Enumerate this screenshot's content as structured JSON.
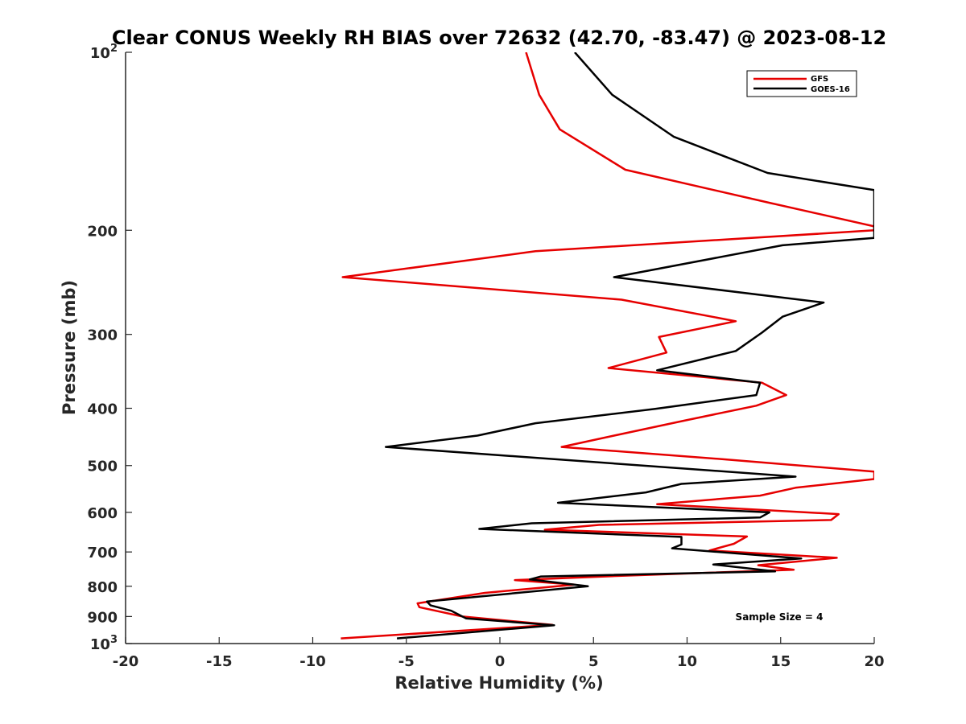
{
  "chart_data": {
    "type": "line",
    "title": "Clear CONUS Weekly RH BIAS over 72632 (42.70, -83.47) @ 2023-08-12",
    "xlabel": "Relative Humidity (%)",
    "ylabel": "Pressure (mb)",
    "xlim": [
      -20,
      20
    ],
    "ylim": [
      100,
      1000
    ],
    "y_scale": "log",
    "y_reversed": true,
    "grid": false,
    "legend_position": "top-right",
    "x_ticks": [
      -20,
      -15,
      -10,
      -5,
      0,
      5,
      10,
      15,
      20
    ],
    "x_tick_labels": [
      "-20",
      "-15",
      "-10",
      "-5",
      "0",
      "5",
      "10",
      "15",
      "20"
    ],
    "y_ticks": [
      100,
      200,
      300,
      400,
      500,
      600,
      700,
      800,
      900,
      1000
    ],
    "y_tick_labels": [
      {
        "base": "10",
        "exp": "2"
      },
      {
        "base": "200",
        "exp": ""
      },
      {
        "base": "300",
        "exp": ""
      },
      {
        "base": "400",
        "exp": ""
      },
      {
        "base": "500",
        "exp": ""
      },
      {
        "base": "600",
        "exp": ""
      },
      {
        "base": "700",
        "exp": ""
      },
      {
        "base": "800",
        "exp": ""
      },
      {
        "base": "900",
        "exp": ""
      },
      {
        "base": "10",
        "exp": "3"
      }
    ],
    "annotation": "Sample Size = 4",
    "series": [
      {
        "name": "GFS",
        "color": "#e60000",
        "points": [
          [
            1.4,
            100
          ],
          [
            2.1,
            118
          ],
          [
            3.2,
            135
          ],
          [
            6.7,
            158
          ],
          [
            14.5,
            180
          ],
          [
            20,
            197
          ],
          [
            20,
            200
          ],
          [
            1.9,
            217
          ],
          [
            -8.4,
            240
          ],
          [
            6.5,
            262
          ],
          [
            12.6,
            285
          ],
          [
            8.5,
            303
          ],
          [
            8.9,
            322
          ],
          [
            5.8,
            342
          ],
          [
            14.0,
            362
          ],
          [
            15.3,
            380
          ],
          [
            13.7,
            396
          ],
          [
            9.8,
            420
          ],
          [
            6.1,
            445
          ],
          [
            3.3,
            465
          ],
          [
            12.0,
            488
          ],
          [
            20,
            512
          ],
          [
            20,
            527
          ],
          [
            15.8,
            545
          ],
          [
            13.9,
            562
          ],
          [
            8.4,
            581
          ],
          [
            18.1,
            604
          ],
          [
            17.7,
            618
          ],
          [
            5.3,
            630
          ],
          [
            2.4,
            642
          ],
          [
            13.2,
            659
          ],
          [
            12.5,
            678
          ],
          [
            11.2,
            696
          ],
          [
            18.0,
            716
          ],
          [
            13.8,
            737
          ],
          [
            15.7,
            750
          ],
          [
            6.0,
            769
          ],
          [
            0.8,
            781
          ],
          [
            4.0,
            795
          ],
          [
            -0.8,
            821
          ],
          [
            -4.4,
            855
          ],
          [
            -4.3,
            868
          ],
          [
            -2.0,
            900
          ],
          [
            2.8,
            930
          ],
          [
            -8.5,
            980
          ]
        ]
      },
      {
        "name": "GOES-16",
        "color": "#000000",
        "points": [
          [
            4.0,
            100
          ],
          [
            6.0,
            118
          ],
          [
            9.3,
            139
          ],
          [
            14.3,
            160
          ],
          [
            20,
            171
          ],
          [
            20,
            206
          ],
          [
            15.1,
            212
          ],
          [
            6.1,
            240
          ],
          [
            17.3,
            265
          ],
          [
            15.1,
            280
          ],
          [
            14.0,
            298
          ],
          [
            12.6,
            320
          ],
          [
            8.4,
            345
          ],
          [
            13.9,
            362
          ],
          [
            13.7,
            380
          ],
          [
            8.3,
            401
          ],
          [
            1.9,
            424
          ],
          [
            -1.2,
            445
          ],
          [
            -6.1,
            465
          ],
          [
            -0.1,
            480
          ],
          [
            15.8,
            522
          ],
          [
            9.7,
            537
          ],
          [
            7.8,
            555
          ],
          [
            3.1,
            578
          ],
          [
            14.4,
            600
          ],
          [
            13.9,
            612
          ],
          [
            1.7,
            626
          ],
          [
            -1.1,
            640
          ],
          [
            9.7,
            660
          ],
          [
            9.7,
            680
          ],
          [
            9.2,
            690
          ],
          [
            16.1,
            718
          ],
          [
            11.4,
            735
          ],
          [
            14.7,
            755
          ],
          [
            2.2,
            770
          ],
          [
            1.6,
            779
          ],
          [
            4.7,
            800
          ],
          [
            -3.9,
            849
          ],
          [
            -3.7,
            862
          ],
          [
            -2.6,
            880
          ],
          [
            -1.8,
            907
          ],
          [
            2.9,
            931
          ],
          [
            -5.5,
            980
          ]
        ]
      }
    ]
  }
}
